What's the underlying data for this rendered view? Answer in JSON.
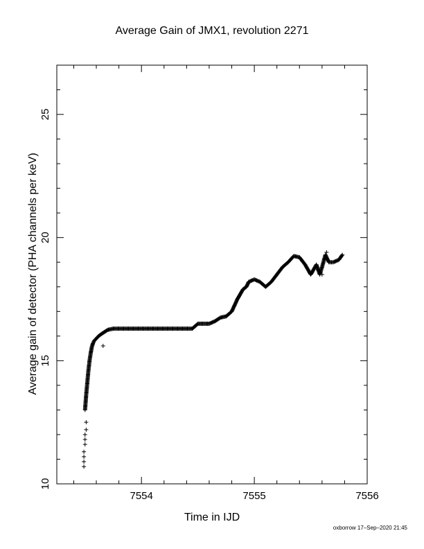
{
  "title": "Average Gain of JMX1, revolution 2271",
  "xlabel": "Time in IJD",
  "ylabel": "Average gain of detector (PHA channels per keV)",
  "credit": "oxborrow 17–Sep–2020 21:45",
  "chart_data": {
    "type": "scatter",
    "marker": "plus",
    "title": "Average Gain of JMX1, revolution 2271",
    "xlabel": "Time in IJD",
    "ylabel": "Average gain of detector (PHA channels per keV)",
    "xlim": [
      7553.25,
      7556.0
    ],
    "ylim": [
      10,
      27
    ],
    "x_ticks": [
      7554,
      7555,
      7556
    ],
    "y_ticks": [
      10,
      15,
      20,
      25
    ],
    "grid": false,
    "series": [
      {
        "x": [
          7553.5,
          7553.51,
          7553.52,
          7553.53,
          7553.54,
          7553.55,
          7553.56,
          7553.57,
          7553.58,
          7553.6,
          7553.62,
          7553.65,
          7553.7,
          7553.75,
          7553.8,
          7553.85,
          7553.9,
          7554.0,
          7554.1,
          7554.2,
          7554.3,
          7554.4,
          7554.45,
          7554.5,
          7554.55,
          7554.6,
          7554.65,
          7554.7,
          7554.75,
          7554.8,
          7554.85,
          7554.9,
          7554.93,
          7554.95,
          7555.0,
          7555.05,
          7555.1,
          7555.15,
          7555.2,
          7555.25,
          7555.3,
          7555.35,
          7555.4,
          7555.45,
          7555.5,
          7555.55,
          7555.58,
          7555.6,
          7555.63,
          7555.66,
          7555.7,
          7555.75,
          7555.78
        ],
        "y": [
          13.0,
          13.6,
          14.1,
          14.6,
          15.0,
          15.3,
          15.55,
          15.7,
          15.8,
          15.9,
          16.0,
          16.1,
          16.25,
          16.3,
          16.3,
          16.3,
          16.3,
          16.3,
          16.3,
          16.3,
          16.3,
          16.3,
          16.3,
          16.5,
          16.5,
          16.5,
          16.6,
          16.75,
          16.8,
          17.0,
          17.5,
          17.9,
          18.0,
          18.2,
          18.3,
          18.2,
          18.0,
          18.2,
          18.5,
          18.8,
          19.0,
          19.25,
          19.2,
          18.9,
          18.5,
          18.9,
          18.5,
          18.8,
          19.3,
          19.0,
          19.0,
          19.1,
          19.3
        ]
      },
      {
        "x": [
          7553.49,
          7553.49,
          7553.49,
          7553.49,
          7553.5,
          7553.5,
          7553.5,
          7553.51,
          7553.51,
          7553.66,
          7555.6,
          7555.64
        ],
        "y": [
          10.7,
          10.9,
          11.1,
          11.3,
          11.6,
          11.8,
          12.0,
          12.2,
          12.5,
          15.6,
          18.5,
          19.4
        ]
      }
    ]
  }
}
